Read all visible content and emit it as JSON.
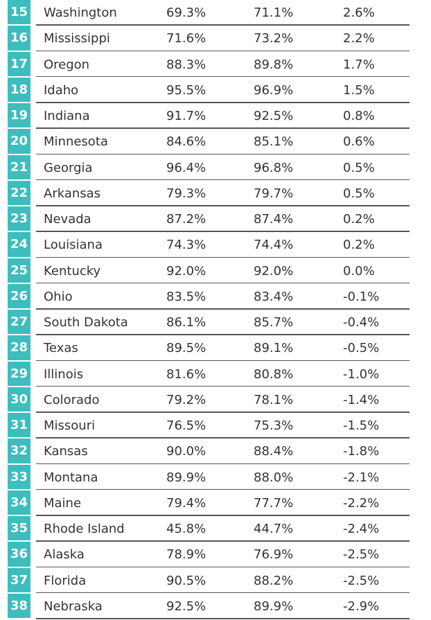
{
  "colors": {
    "rank_background": "#3dbdbd",
    "rank_text": "#ffffff",
    "text": "#333333",
    "row_rule": "#555555"
  },
  "chart_data": {
    "type": "table",
    "rows": [
      {
        "rank": "15",
        "state": "Washington",
        "a": "69.3%",
        "b": "71.1%",
        "change": "2.6%"
      },
      {
        "rank": "16",
        "state": "Mississippi",
        "a": "71.6%",
        "b": "73.2%",
        "change": "2.2%"
      },
      {
        "rank": "17",
        "state": "Oregon",
        "a": "88.3%",
        "b": "89.8%",
        "change": "1.7%"
      },
      {
        "rank": "18",
        "state": "Idaho",
        "a": "95.5%",
        "b": "96.9%",
        "change": "1.5%"
      },
      {
        "rank": "19",
        "state": "Indiana",
        "a": "91.7%",
        "b": "92.5%",
        "change": "0.8%"
      },
      {
        "rank": "20",
        "state": "Minnesota",
        "a": "84.6%",
        "b": "85.1%",
        "change": "0.6%"
      },
      {
        "rank": "21",
        "state": "Georgia",
        "a": "96.4%",
        "b": "96.8%",
        "change": "0.5%"
      },
      {
        "rank": "22",
        "state": "Arkansas",
        "a": "79.3%",
        "b": "79.7%",
        "change": "0.5%"
      },
      {
        "rank": "23",
        "state": "Nevada",
        "a": "87.2%",
        "b": "87.4%",
        "change": "0.2%"
      },
      {
        "rank": "24",
        "state": "Louisiana",
        "a": "74.3%",
        "b": "74.4%",
        "change": "0.2%"
      },
      {
        "rank": "25",
        "state": "Kentucky",
        "a": "92.0%",
        "b": "92.0%",
        "change": "0.0%"
      },
      {
        "rank": "26",
        "state": "Ohio",
        "a": "83.5%",
        "b": "83.4%",
        "change": "-0.1%"
      },
      {
        "rank": "27",
        "state": "South Dakota",
        "a": "86.1%",
        "b": "85.7%",
        "change": "-0.4%"
      },
      {
        "rank": "28",
        "state": "Texas",
        "a": "89.5%",
        "b": "89.1%",
        "change": "-0.5%"
      },
      {
        "rank": "29",
        "state": "Illinois",
        "a": "81.6%",
        "b": "80.8%",
        "change": "-1.0%"
      },
      {
        "rank": "30",
        "state": "Colorado",
        "a": "79.2%",
        "b": "78.1%",
        "change": "-1.4%"
      },
      {
        "rank": "31",
        "state": "Missouri",
        "a": "76.5%",
        "b": "75.3%",
        "change": "-1.5%"
      },
      {
        "rank": "32",
        "state": "Kansas",
        "a": "90.0%",
        "b": "88.4%",
        "change": "-1.8%"
      },
      {
        "rank": "33",
        "state": "Montana",
        "a": "89.9%",
        "b": "88.0%",
        "change": "-2.1%"
      },
      {
        "rank": "34",
        "state": "Maine",
        "a": "79.4%",
        "b": "77.7%",
        "change": "-2.2%"
      },
      {
        "rank": "35",
        "state": "Rhode Island",
        "a": "45.8%",
        "b": "44.7%",
        "change": "-2.4%"
      },
      {
        "rank": "36",
        "state": "Alaska",
        "a": "78.9%",
        "b": "76.9%",
        "change": "-2.5%"
      },
      {
        "rank": "37",
        "state": "Florida",
        "a": "90.5%",
        "b": "88.2%",
        "change": "-2.5%"
      },
      {
        "rank": "38",
        "state": "Nebraska",
        "a": "92.5%",
        "b": "89.9%",
        "change": "-2.9%"
      }
    ]
  }
}
